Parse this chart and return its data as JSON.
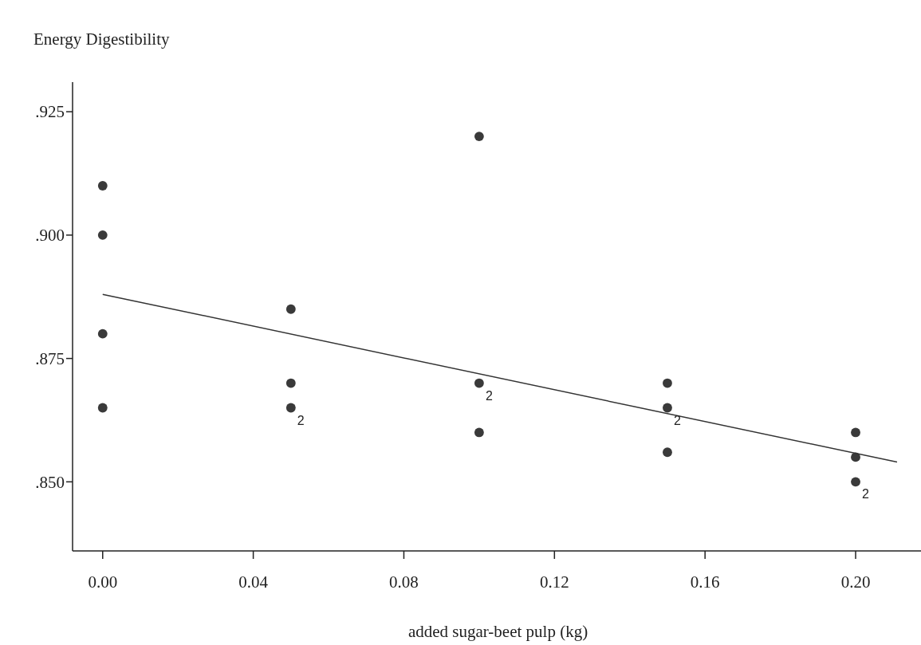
{
  "chart_data": {
    "type": "scatter",
    "title": "Energy Digestibility",
    "xlabel": "added sugar-beet pulp (kg)",
    "xlim": [
      -0.008,
      0.218
    ],
    "ylim": [
      0.836,
      0.931
    ],
    "xticks": [
      {
        "value": 0,
        "label": "0.00"
      },
      {
        "value": 0.04,
        "label": "0.04"
      },
      {
        "value": 0.08,
        "label": "0.08"
      },
      {
        "value": 0.12,
        "label": "0.12"
      },
      {
        "value": 0.16,
        "label": "0.16"
      },
      {
        "value": 0.2,
        "label": "0.20"
      }
    ],
    "yticks": [
      {
        "value": 0.85,
        "label": ".850"
      },
      {
        "value": 0.875,
        "label": ".875"
      },
      {
        "value": 0.9,
        "label": ".900"
      },
      {
        "value": 0.925,
        "label": ".925"
      }
    ],
    "grid": false,
    "series": [
      {
        "marker": "circle",
        "color": "#3a3a3a",
        "x": [
          0,
          0,
          0,
          0,
          0.05,
          0.05,
          0.05,
          0.1,
          0.1,
          0.1,
          0.15,
          0.15,
          0.15,
          0.2,
          0.2,
          0.2
        ],
        "values": [
          0.91,
          0.9,
          0.88,
          0.865,
          0.885,
          0.87,
          0.865,
          0.92,
          0.87,
          0.86,
          0.87,
          0.865,
          0.856,
          0.86,
          0.855,
          0.85
        ]
      },
      {
        "type": "line",
        "color": "#333333",
        "x": [
          0,
          0.211
        ],
        "values": [
          0.888,
          0.854
        ]
      }
    ],
    "annotations": [
      {
        "text": "2",
        "x": 0.05,
        "y": 0.865
      },
      {
        "text": "2",
        "x": 0.1,
        "y": 0.87
      },
      {
        "text": "2",
        "x": 0.15,
        "y": 0.865
      },
      {
        "text": "2",
        "x": 0.2,
        "y": 0.85
      }
    ]
  }
}
